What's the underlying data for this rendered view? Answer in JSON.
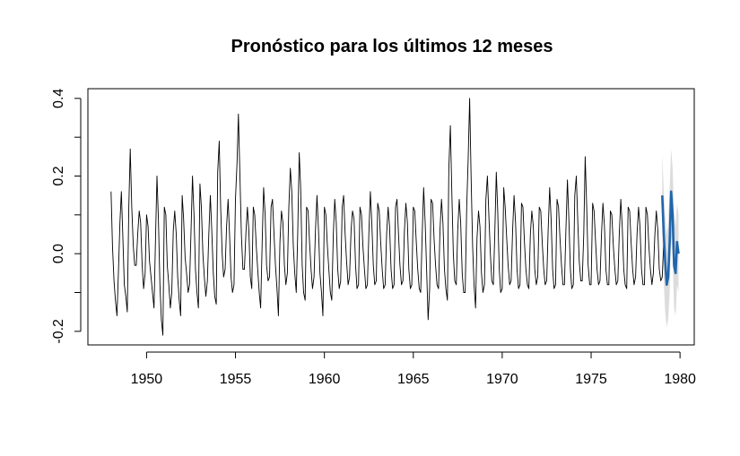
{
  "chart_data": {
    "type": "line",
    "title": "Pronóstico para los últimos 12 meses",
    "xlabel": "",
    "ylabel": "",
    "xlim": [
      1946.7,
      1980.8
    ],
    "ylim": [
      -0.235,
      0.425
    ],
    "x_ticks": [
      1950,
      1955,
      1960,
      1965,
      1970,
      1975,
      1980
    ],
    "x_tick_labels": [
      "1950",
      "1955",
      "1960",
      "1965",
      "1970",
      "1975",
      "1980"
    ],
    "y_ticks": [
      -0.2,
      0.0,
      0.2,
      0.4
    ],
    "y_tick_labels": [
      "-0.2",
      "0.0",
      "0.2",
      "0.4"
    ],
    "y_minor_ticks": [
      -0.1,
      0.1,
      0.3
    ],
    "grid": false,
    "frequency": 12,
    "colors": {
      "observed": "#000000",
      "forecast": "#2166ac",
      "interval": "#dcdcdc"
    },
    "series": [
      {
        "start": 1948.0,
        "values": [
          0.16,
          0.02,
          -0.07,
          -0.12,
          -0.16,
          -0.05,
          0.08,
          0.16,
          0.04,
          -0.08,
          -0.11,
          -0.15,
          0.12,
          0.27,
          0.12,
          0.02,
          -0.03,
          -0.03,
          0.05,
          0.11,
          0.08,
          -0.03,
          -0.09,
          -0.05,
          0.1,
          0.07,
          -0.02,
          -0.06,
          -0.1,
          -0.14,
          0.03,
          0.2,
          0.09,
          -0.08,
          -0.17,
          -0.21,
          0.12,
          0.1,
          -0.03,
          -0.08,
          -0.14,
          -0.1,
          0.06,
          0.11,
          0.05,
          -0.06,
          -0.12,
          -0.16,
          0.15,
          0.09,
          -0.01,
          -0.05,
          -0.1,
          -0.08,
          0.06,
          0.2,
          0.1,
          -0.04,
          -0.1,
          -0.14,
          0.18,
          0.12,
          0.0,
          -0.06,
          -0.11,
          -0.07,
          0.05,
          0.15,
          0.06,
          -0.05,
          -0.11,
          -0.13,
          0.21,
          0.29,
          0.12,
          0.0,
          -0.06,
          -0.04,
          0.07,
          0.14,
          0.05,
          -0.06,
          -0.1,
          -0.08,
          0.14,
          0.23,
          0.36,
          0.2,
          0.05,
          -0.04,
          -0.04,
          0.05,
          0.12,
          0.06,
          -0.06,
          -0.09,
          0.12,
          0.1,
          0.02,
          -0.04,
          -0.1,
          -0.14,
          0.03,
          0.17,
          0.1,
          -0.03,
          -0.07,
          -0.06,
          0.12,
          0.14,
          0.05,
          -0.03,
          -0.09,
          -0.16,
          0.03,
          0.11,
          0.08,
          -0.03,
          -0.08,
          -0.05,
          0.12,
          0.22,
          0.16,
          0.02,
          -0.05,
          -0.1,
          0.05,
          0.26,
          0.17,
          -0.03,
          -0.1,
          -0.12,
          0.12,
          0.11,
          0.03,
          -0.04,
          -0.09,
          -0.06,
          0.06,
          0.15,
          0.06,
          -0.05,
          -0.1,
          -0.16,
          0.12,
          0.1,
          0.02,
          -0.04,
          -0.1,
          -0.12,
          0.05,
          0.14,
          0.08,
          -0.04,
          -0.09,
          -0.07,
          0.12,
          0.15,
          0.05,
          -0.02,
          -0.08,
          -0.06,
          0.06,
          0.11,
          0.09,
          -0.03,
          -0.09,
          -0.08,
          0.12,
          0.1,
          0.02,
          -0.04,
          -0.09,
          -0.08,
          0.05,
          0.16,
          0.08,
          -0.03,
          -0.08,
          -0.07,
          0.13,
          0.11,
          0.03,
          -0.04,
          -0.09,
          -0.08,
          0.05,
          0.12,
          0.07,
          -0.04,
          -0.09,
          -0.08,
          0.12,
          0.14,
          0.05,
          -0.03,
          -0.08,
          -0.07,
          0.06,
          0.13,
          0.08,
          -0.04,
          -0.09,
          -0.08,
          0.12,
          0.11,
          0.03,
          -0.04,
          -0.09,
          -0.1,
          0.05,
          0.17,
          0.08,
          -0.04,
          -0.17,
          -0.09,
          0.14,
          0.13,
          0.04,
          -0.03,
          -0.08,
          -0.09,
          0.06,
          0.14,
          0.08,
          -0.04,
          -0.09,
          -0.12,
          0.22,
          0.33,
          0.16,
          0.0,
          -0.07,
          -0.08,
          0.06,
          0.14,
          0.08,
          -0.05,
          -0.1,
          -0.1,
          0.12,
          0.24,
          0.4,
          0.2,
          0.02,
          -0.08,
          -0.14,
          0.04,
          0.11,
          0.07,
          -0.05,
          -0.1,
          -0.08,
          0.14,
          0.2,
          0.1,
          0.0,
          -0.07,
          -0.08,
          0.05,
          0.21,
          0.11,
          -0.04,
          -0.1,
          -0.09,
          0.17,
          0.12,
          0.04,
          -0.03,
          -0.08,
          -0.07,
          0.06,
          0.15,
          0.08,
          -0.04,
          -0.09,
          -0.08,
          0.13,
          0.12,
          0.03,
          -0.04,
          -0.08,
          -0.09,
          0.05,
          0.11,
          0.07,
          -0.04,
          -0.08,
          -0.06,
          0.12,
          0.11,
          0.03,
          -0.04,
          -0.08,
          -0.07,
          0.06,
          0.17,
          0.09,
          -0.04,
          -0.09,
          -0.08,
          0.14,
          0.12,
          0.04,
          -0.03,
          -0.08,
          -0.08,
          0.06,
          0.19,
          0.09,
          -0.04,
          -0.09,
          -0.08,
          0.15,
          0.2,
          0.08,
          -0.02,
          -0.07,
          -0.07,
          0.05,
          0.25,
          0.12,
          -0.03,
          -0.08,
          -0.08,
          0.13,
          0.11,
          0.03,
          -0.04,
          -0.08,
          -0.07,
          0.05,
          0.13,
          0.07,
          -0.04,
          -0.08,
          -0.08,
          0.11,
          0.1,
          0.02,
          -0.04,
          -0.08,
          -0.07,
          0.05,
          0.14,
          0.07,
          -0.04,
          -0.08,
          -0.09,
          0.12,
          0.11,
          0.03,
          -0.04,
          -0.08,
          -0.06,
          0.05,
          0.12,
          0.07,
          -0.04,
          -0.08,
          -0.08,
          0.12,
          0.1,
          0.02,
          -0.04,
          -0.08,
          -0.05,
          0.05,
          0.11,
          0.06,
          -0.04,
          -0.07,
          -0.06,
          0.03
        ]
      },
      {
        "start": 1979.0,
        "values": [
          0.15,
          0.05,
          -0.02,
          -0.08,
          -0.06,
          0.03,
          0.16,
          0.1,
          -0.03,
          -0.05,
          0.03,
          0.0
        ],
        "upper": [
          0.26,
          0.16,
          0.1,
          0.05,
          0.08,
          0.17,
          0.27,
          0.22,
          0.1,
          0.07,
          0.13,
          0.1
        ],
        "lower": [
          0.05,
          -0.07,
          -0.15,
          -0.19,
          -0.17,
          -0.1,
          0.04,
          -0.01,
          -0.14,
          -0.16,
          -0.08,
          -0.1
        ]
      }
    ]
  }
}
